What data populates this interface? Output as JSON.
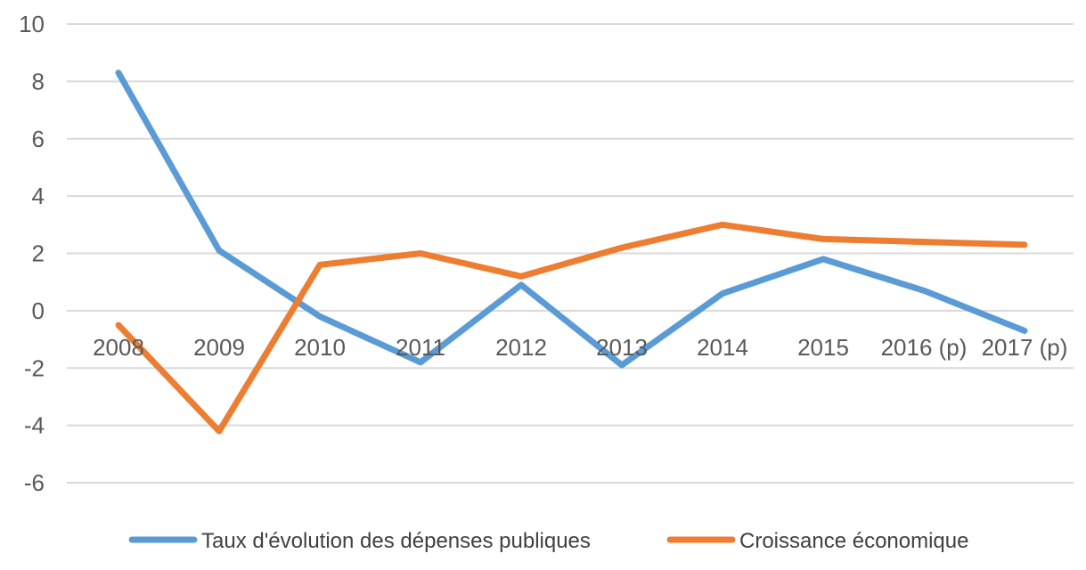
{
  "chart_data": {
    "type": "line",
    "categories": [
      "2008",
      "2009",
      "2010",
      "2011",
      "2012",
      "2013",
      "2014",
      "2015",
      "2016 (p)",
      "2017 (p)"
    ],
    "ylim": [
      -6,
      10
    ],
    "yticks": [
      10,
      8,
      6,
      4,
      2,
      0,
      -2,
      -4,
      -6
    ],
    "grid": true,
    "legend_position": "bottom",
    "series": [
      {
        "name": "Taux d'évolution des dépenses publiques",
        "color": "#5b9bd5",
        "values": [
          8.3,
          2.1,
          -0.2,
          -1.8,
          0.9,
          -1.9,
          0.6,
          1.8,
          0.7,
          -0.7
        ]
      },
      {
        "name": "Croissance économique",
        "color": "#ed7d31",
        "values": [
          -0.5,
          -4.2,
          1.6,
          2.0,
          1.2,
          2.2,
          3.0,
          2.5,
          2.4,
          2.3
        ]
      }
    ]
  }
}
